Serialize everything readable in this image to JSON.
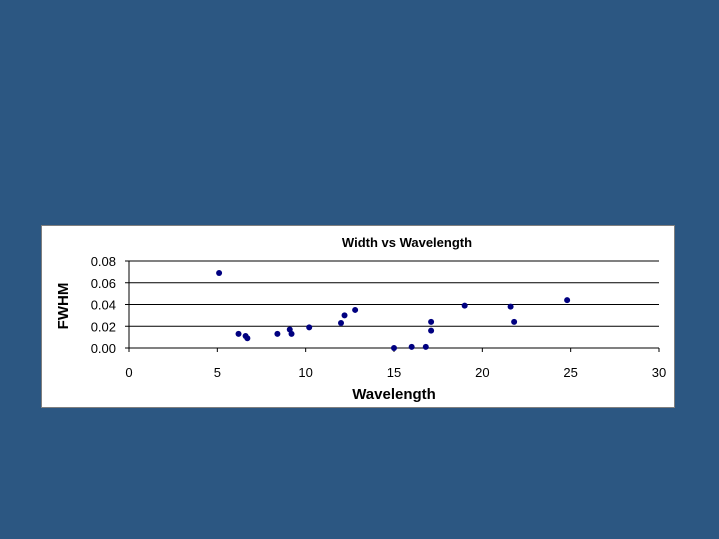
{
  "chart_data": {
    "type": "scatter",
    "title": "Width vs Wavelength",
    "xlabel": "Wavelength",
    "ylabel": "FWHM",
    "xlim": [
      0,
      30
    ],
    "ylim": [
      0,
      0.08
    ],
    "x_ticks": [
      "0",
      "5",
      "10",
      "15",
      "20",
      "25",
      "30"
    ],
    "y_ticks": [
      "0.00",
      "0.02",
      "0.04",
      "0.06",
      "0.08"
    ],
    "grid": "horizontal major gridlines",
    "legend": "none",
    "marker_color": "#000080",
    "points": [
      {
        "x": 5.1,
        "y": 0.069
      },
      {
        "x": 6.2,
        "y": 0.013
      },
      {
        "x": 6.6,
        "y": 0.011
      },
      {
        "x": 6.7,
        "y": 0.009
      },
      {
        "x": 8.4,
        "y": 0.013
      },
      {
        "x": 9.1,
        "y": 0.017
      },
      {
        "x": 9.2,
        "y": 0.013
      },
      {
        "x": 10.2,
        "y": 0.019
      },
      {
        "x": 12.0,
        "y": 0.023
      },
      {
        "x": 12.2,
        "y": 0.03
      },
      {
        "x": 12.8,
        "y": 0.035
      },
      {
        "x": 15.0,
        "y": 0.0
      },
      {
        "x": 16.0,
        "y": 0.001
      },
      {
        "x": 16.8,
        "y": 0.001
      },
      {
        "x": 17.1,
        "y": 0.024
      },
      {
        "x": 17.1,
        "y": 0.016
      },
      {
        "x": 19.0,
        "y": 0.039
      },
      {
        "x": 21.6,
        "y": 0.038
      },
      {
        "x": 21.8,
        "y": 0.024
      },
      {
        "x": 24.8,
        "y": 0.044
      }
    ]
  }
}
